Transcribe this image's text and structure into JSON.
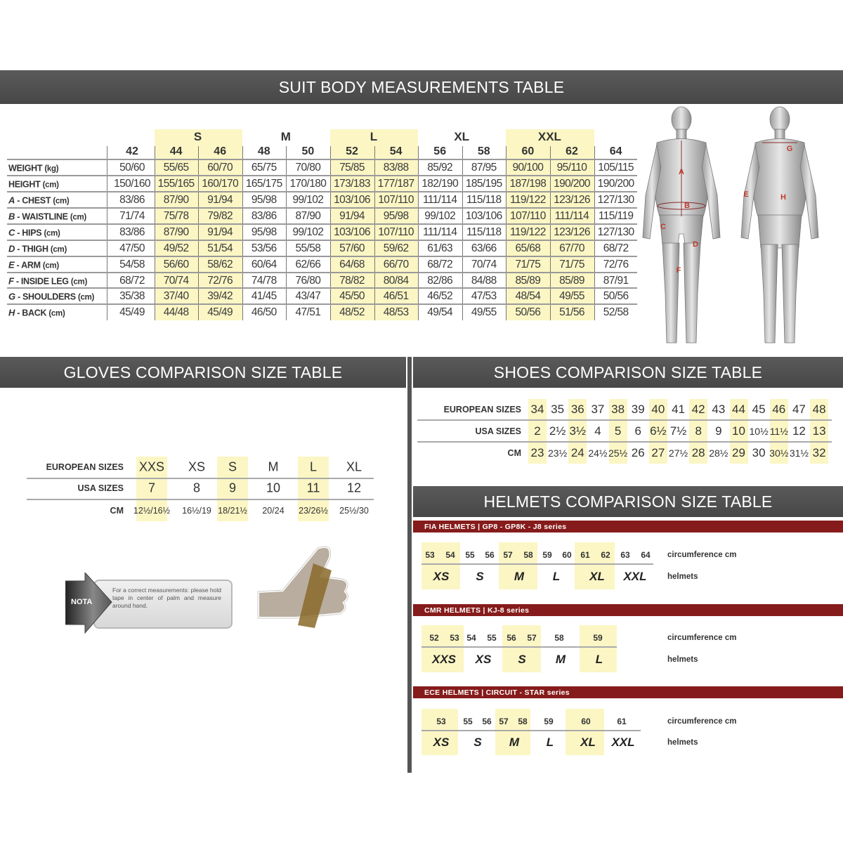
{
  "suit": {
    "title": "SUIT BODY MEASUREMENTS TABLE",
    "groups": [
      {
        "label": "S",
        "sizes": [
          "44",
          "46"
        ]
      },
      {
        "label": "M",
        "sizes": [
          "48",
          "50"
        ]
      },
      {
        "label": "L",
        "sizes": [
          "52",
          "54"
        ]
      },
      {
        "label": "XL",
        "sizes": [
          "56",
          "58"
        ]
      },
      {
        "label": "XXL",
        "sizes": [
          "60",
          "62"
        ]
      }
    ],
    "sizes": [
      "42",
      "44",
      "46",
      "48",
      "50",
      "52",
      "54",
      "56",
      "58",
      "60",
      "62",
      "64"
    ],
    "highlighted_sizes": [
      "44",
      "46",
      "52",
      "54",
      "60",
      "62"
    ],
    "rows": [
      {
        "letter": "",
        "name": "WEIGHT",
        "unit": "(kg)",
        "values": [
          "50/60",
          "55/65",
          "60/70",
          "65/75",
          "70/80",
          "75/85",
          "83/88",
          "85/92",
          "87/95",
          "90/100",
          "95/110",
          "105/115"
        ]
      },
      {
        "letter": "",
        "name": "HEIGHT",
        "unit": "(cm)",
        "values": [
          "150/160",
          "155/165",
          "160/170",
          "165/175",
          "170/180",
          "173/183",
          "177/187",
          "182/190",
          "185/195",
          "187/198",
          "190/200",
          "190/200"
        ]
      },
      {
        "letter": "A",
        "name": " - CHEST",
        "unit": "(cm)",
        "values": [
          "83/86",
          "87/90",
          "91/94",
          "95/98",
          "99/102",
          "103/106",
          "107/110",
          "111/114",
          "115/118",
          "119/122",
          "123/126",
          "127/130"
        ]
      },
      {
        "letter": "B",
        "name": " - WAISTLINE",
        "unit": "(cm)",
        "values": [
          "71/74",
          "75/78",
          "79/82",
          "83/86",
          "87/90",
          "91/94",
          "95/98",
          "99/102",
          "103/106",
          "107/110",
          "111/114",
          "115/119"
        ]
      },
      {
        "letter": "C",
        "name": " - HIPS",
        "unit": "(cm)",
        "values": [
          "83/86",
          "87/90",
          "91/94",
          "95/98",
          "99/102",
          "103/106",
          "107/110",
          "111/114",
          "115/118",
          "119/122",
          "123/126",
          "127/130"
        ]
      },
      {
        "letter": "D",
        "name": " - THIGH",
        "unit": "(cm)",
        "values": [
          "47/50",
          "49/52",
          "51/54",
          "53/56",
          "55/58",
          "57/60",
          "59/62",
          "61/63",
          "63/66",
          "65/68",
          "67/70",
          "68/72"
        ]
      },
      {
        "letter": "E",
        "name": " - ARM",
        "unit": "(cm)",
        "values": [
          "54/58",
          "56/60",
          "58/62",
          "60/64",
          "62/66",
          "64/68",
          "66/70",
          "68/72",
          "70/74",
          "71/75",
          "71/75",
          "72/76"
        ]
      },
      {
        "letter": "F",
        "name": " - INSIDE LEG",
        "unit": "(cm)",
        "values": [
          "68/72",
          "70/74",
          "72/76",
          "74/78",
          "76/80",
          "78/82",
          "80/84",
          "82/86",
          "84/88",
          "85/89",
          "85/89",
          "87/91"
        ]
      },
      {
        "letter": "G",
        "name": " - SHOULDERS",
        "unit": "(cm)",
        "values": [
          "35/38",
          "37/40",
          "39/42",
          "41/45",
          "43/47",
          "45/50",
          "46/51",
          "46/52",
          "47/53",
          "48/54",
          "49/55",
          "50/56"
        ]
      },
      {
        "letter": "H",
        "name": " - BACK",
        "unit": "(cm)",
        "values": [
          "45/49",
          "44/48",
          "45/49",
          "46/50",
          "47/51",
          "48/52",
          "48/53",
          "49/54",
          "49/55",
          "50/56",
          "51/56",
          "52/58"
        ]
      }
    ],
    "figure_markers": {
      "front": [
        "A",
        "B",
        "C",
        "D",
        "F"
      ],
      "back": [
        "G",
        "E",
        "H"
      ]
    }
  },
  "gloves": {
    "title": "GLOVES COMPARISON SIZE TABLE",
    "row_labels": [
      "EUROPEAN SIZES",
      "USA SIZES",
      "CM"
    ],
    "european": [
      "XXS",
      "XS",
      "S",
      "M",
      "L",
      "XL"
    ],
    "usa": [
      "7",
      "8",
      "9",
      "10",
      "11",
      "12"
    ],
    "cm": [
      "12½/16½",
      "16½/19",
      "18/21½",
      "20/24",
      "23/26½",
      "25½/30"
    ],
    "highlighted": [
      "XXS",
      "S",
      "L"
    ],
    "note_label": "NOTA",
    "note_text": "For a correct measurements: please hold tape in center of palm and measure around hand."
  },
  "shoes": {
    "title": "SHOES COMPARISON SIZE TABLE",
    "row_labels": [
      "EUROPEAN SIZES",
      "USA SIZES",
      "CM"
    ],
    "european": [
      "34",
      "35",
      "36",
      "37",
      "38",
      "39",
      "40",
      "41",
      "42",
      "43",
      "44",
      "45",
      "46",
      "47",
      "48"
    ],
    "usa": [
      "2",
      "2½",
      "3½",
      "4",
      "5",
      "6",
      "6½",
      "7½",
      "8",
      "9",
      "10",
      "10½",
      "11½",
      "12",
      "13"
    ],
    "cm": [
      "23",
      "23½",
      "24",
      "24½",
      "25½",
      "26",
      "27",
      "27½",
      "28",
      "28½",
      "29",
      "30",
      "30½",
      "31½",
      "32"
    ],
    "highlighted": [
      "34",
      "36",
      "38",
      "40",
      "42",
      "44",
      "46",
      "48"
    ]
  },
  "helmets": {
    "title": "HELMETS COMPARISON SIZE TABLE",
    "circumference_label": "circumference cm",
    "helmets_label": "helmets",
    "accent_color": "#861b1b",
    "highlight_color": "#fbf6c4",
    "series": [
      {
        "header": "FIA HELMETS  |  GP8 - GP8K - J8 series",
        "circumference": [
          "53",
          "54",
          "55",
          "56",
          "57",
          "58",
          "59",
          "60",
          "61",
          "62",
          "63",
          "64"
        ],
        "sizes": [
          "XS",
          "S",
          "M",
          "L",
          "XL",
          "XXL"
        ],
        "highlighted": [
          "XS",
          "M",
          "XL"
        ]
      },
      {
        "header": "CMR HELMETS  |  KJ-8 series",
        "circumference": [
          "52",
          "53",
          "54",
          "55",
          "56",
          "57",
          "58",
          "59"
        ],
        "sizes": [
          "XXS",
          "XS",
          "S",
          "M",
          "L"
        ],
        "highlighted": [
          "XXS",
          "S",
          "L"
        ]
      },
      {
        "header": "ECE HELMETS  |  CIRCUIT - STAR series",
        "circumference": [
          "53",
          "55",
          "56",
          "57",
          "58",
          "59",
          "60",
          "61"
        ],
        "sizes": [
          "XS",
          "S",
          "M",
          "L",
          "XL",
          "XXL"
        ],
        "highlighted": [
          "XS",
          "M",
          "XL"
        ]
      }
    ]
  }
}
